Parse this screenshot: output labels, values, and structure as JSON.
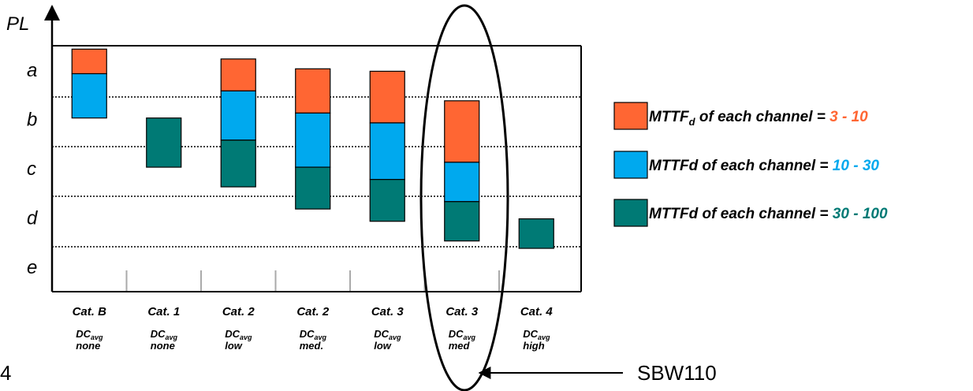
{
  "axis": {
    "y_title": "PL",
    "levels": [
      "a",
      "b",
      "c",
      "d",
      "e"
    ]
  },
  "colors": {
    "orange": "#ff6633",
    "blue": "#00a9ee",
    "teal": "#007a75",
    "grid": "#aaaaaa"
  },
  "columns": [
    {
      "cat": "Cat. B",
      "dc": "DC",
      "dc_sub": "avg",
      "level": "none",
      "segments": [
        {
          "color": "orange",
          "from": 0.55,
          "to": 1.05
        },
        {
          "color": "blue",
          "from": 1.05,
          "to": 1.95
        }
      ]
    },
    {
      "cat": "Cat. 1",
      "dc": "DC",
      "dc_sub": "avg",
      "level": "none",
      "segments": [
        {
          "color": "teal",
          "from": 1.95,
          "to": 2.95
        }
      ]
    },
    {
      "cat": "Cat. 2",
      "dc": "DC",
      "dc_sub": "avg",
      "level": "low",
      "segments": [
        {
          "color": "orange",
          "from": 0.75,
          "to": 1.4
        },
        {
          "color": "blue",
          "from": 1.4,
          "to": 2.4
        },
        {
          "color": "teal",
          "from": 2.4,
          "to": 3.35
        }
      ]
    },
    {
      "cat": "Cat. 2",
      "dc": "DC",
      "dc_sub": "avg",
      "level": "med.",
      "segments": [
        {
          "color": "orange",
          "from": 0.95,
          "to": 1.85
        },
        {
          "color": "blue",
          "from": 1.85,
          "to": 2.95
        },
        {
          "color": "teal",
          "from": 2.95,
          "to": 3.8
        }
      ]
    },
    {
      "cat": "Cat. 3",
      "dc": "DC",
      "dc_sub": "avg",
      "level": "low",
      "segments": [
        {
          "color": "orange",
          "from": 1.0,
          "to": 2.05
        },
        {
          "color": "blue",
          "from": 2.05,
          "to": 3.2
        },
        {
          "color": "teal",
          "from": 3.2,
          "to": 4.05
        }
      ]
    },
    {
      "cat": "Cat. 3",
      "dc": "DC",
      "dc_sub": "avg",
      "level": "med",
      "segments": [
        {
          "color": "orange",
          "from": 1.6,
          "to": 2.85
        },
        {
          "color": "blue",
          "from": 2.85,
          "to": 3.65
        },
        {
          "color": "teal",
          "from": 3.65,
          "to": 4.45
        }
      ]
    },
    {
      "cat": "Cat. 4",
      "dc": "DC",
      "dc_sub": "avg",
      "level": "high",
      "segments": [
        {
          "color": "teal",
          "from": 4.0,
          "to": 4.6
        }
      ]
    }
  ],
  "legend": [
    {
      "color": "orange",
      "label": "MTTF",
      "label_sub": "d",
      "label_rest": " of each channel = ",
      "value": "3 - 10"
    },
    {
      "color": "blue",
      "label": "MTTFd",
      "label_sub": "",
      "label_rest": " of each channel = ",
      "value": "10 - 30"
    },
    {
      "color": "teal",
      "label": "MTTFd",
      "label_sub": "",
      "label_rest": " of each channel = ",
      "value": "30 - 100"
    }
  ],
  "page_number": "4",
  "annotation": "SBW110"
}
